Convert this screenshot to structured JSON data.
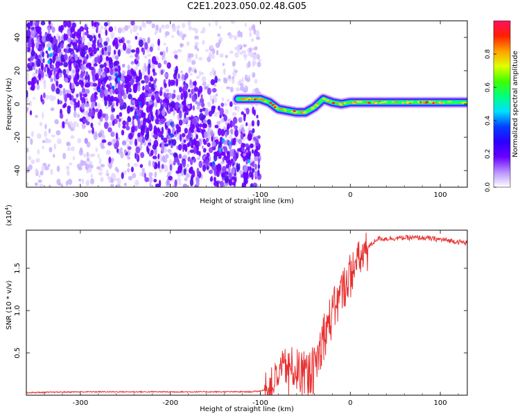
{
  "title": "C2E1.2023.050.02.48.G05",
  "colors": {
    "trace": "#e83030",
    "frame": "#000000"
  },
  "chart_data": [
    {
      "type": "heatmap",
      "panel": "top",
      "xlabel": "Height of straight line (km)",
      "ylabel": "Frequency (Hz)",
      "xlim": [
        -360,
        130
      ],
      "ylim": [
        -50,
        50
      ],
      "x_ticks": [
        -300,
        -200,
        -100,
        0,
        100
      ],
      "y_ticks": [
        -40,
        -20,
        0,
        20,
        40
      ],
      "colorbar": {
        "label": "Normalized spectral amplitude",
        "range": [
          0.0,
          1.0
        ],
        "ticks": [
          "0.0",
          "0.2",
          "0.4",
          "0.6",
          "0.8"
        ],
        "colormap": [
          "#ffffff",
          "#b890ff",
          "#6a00ff",
          "#2a00ff",
          "#0040ff",
          "#00e0ff",
          "#00ff80",
          "#40ff00",
          "#e0ff00",
          "#ffa000",
          "#ff2000",
          "#ff1060"
        ]
      },
      "signal_track": [
        {
          "x": -125,
          "y": 3
        },
        {
          "x": -110,
          "y": 3
        },
        {
          "x": -100,
          "y": 3
        },
        {
          "x": -90,
          "y": 1
        },
        {
          "x": -80,
          "y": -3
        },
        {
          "x": -70,
          "y": -4
        },
        {
          "x": -60,
          "y": -5
        },
        {
          "x": -50,
          "y": -5
        },
        {
          "x": -40,
          "y": -2
        },
        {
          "x": -30,
          "y": 3
        },
        {
          "x": -20,
          "y": 1
        },
        {
          "x": -10,
          "y": 0
        },
        {
          "x": 0,
          "y": 1
        },
        {
          "x": 20,
          "y": 1
        },
        {
          "x": 60,
          "y": 1
        },
        {
          "x": 100,
          "y": 1
        },
        {
          "x": 130,
          "y": 1
        }
      ],
      "noise_band": {
        "x_start": -360,
        "x_end": -100,
        "trend_start_y": 45,
        "trend_end_y": -45
      }
    },
    {
      "type": "line",
      "panel": "bottom",
      "xlabel": "Height of straight line (km)",
      "ylabel": "SNR (10 * v/v)",
      "scale_label": "(x10^4)",
      "xlim": [
        -360,
        130
      ],
      "ylim": [
        0.0,
        1.95
      ],
      "x_ticks": [
        -300,
        -200,
        -100,
        0,
        100
      ],
      "y_ticks": [
        0.5,
        1.0,
        1.5
      ],
      "series": [
        {
          "x": [
            -360,
            -300,
            -200,
            -110,
            -100,
            -90,
            -80,
            -70,
            -60,
            -50,
            -40,
            -30,
            -20,
            -10,
            0,
            10,
            20,
            30,
            40,
            60,
            80,
            100,
            130
          ],
          "y": [
            0.03,
            0.04,
            0.04,
            0.04,
            0.05,
            0.08,
            0.25,
            0.35,
            0.3,
            0.25,
            0.3,
            0.7,
            0.95,
            1.2,
            1.45,
            1.6,
            1.75,
            1.85,
            1.85,
            1.86,
            1.86,
            1.84,
            1.8
          ]
        }
      ]
    }
  ]
}
